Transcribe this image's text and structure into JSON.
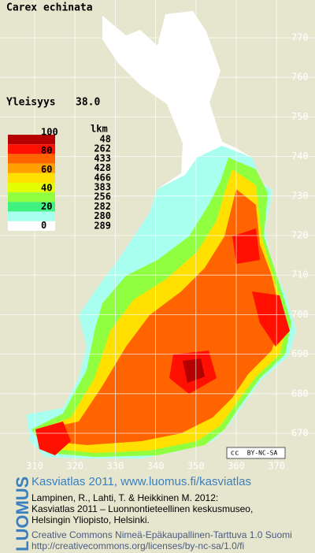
{
  "header": {
    "species": "Carex echinata",
    "frequency_label": "Yleisyys",
    "frequency_value": "38.0"
  },
  "legend": {
    "scale_labels": [
      100,
      80,
      60,
      40,
      20,
      0
    ],
    "count_header": "lkm",
    "counts": [
      48,
      262,
      433,
      428,
      466,
      383,
      256,
      282,
      280,
      289
    ],
    "colors": [
      "#b40000",
      "#ff1000",
      "#ff6400",
      "#ffa000",
      "#ffe000",
      "#e4ff00",
      "#90ff40",
      "#40f080",
      "#a8fff0",
      "#ffffff"
    ]
  },
  "map": {
    "northing_labels": [
      770,
      760,
      750,
      740,
      730,
      720,
      710,
      700,
      690,
      680,
      670
    ],
    "easting_labels": [
      310,
      320,
      330,
      340,
      350,
      360,
      370
    ],
    "license_badge": {
      "cc": "cc",
      "text": "BY-NC-SA"
    }
  },
  "footer": {
    "brand": "LUOMUS",
    "atlas_title": "Kasviatlas 2011, www.luomus.fi/kasviatlas",
    "citation": [
      "Lampinen, R., Lahti, T. & Heikkinen M. 2012:",
      "Kasviatlas 2011 – Luonnontieteellinen keskusmuseo,",
      "Helsingin Yliopisto, Helsinki."
    ],
    "license": [
      "Creative Commons Nimeä-Epäkaupallinen-Tarttuva 1.0 Suomi",
      "http://creativecommons.org/licenses/by-nc-sa/1.0/fi"
    ]
  }
}
